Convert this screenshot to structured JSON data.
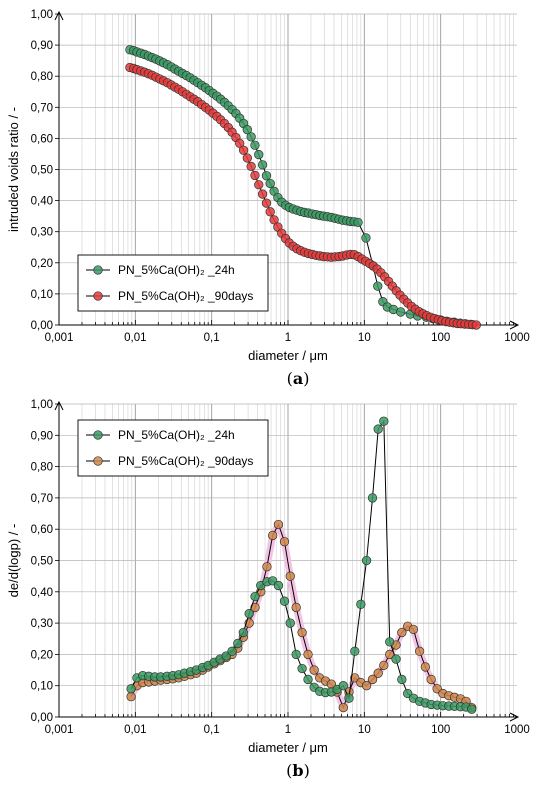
{
  "chart_data": [
    {
      "type": "scatter",
      "panel": "a",
      "caption_prefix": "(",
      "caption_letter": "a",
      "caption_suffix": ")",
      "xlabel": "diameter / μm",
      "ylabel": "intruded voids ratio / -",
      "xscale": "log",
      "xlim": [
        0.001,
        1000
      ],
      "ylim": [
        0,
        1.0
      ],
      "xticks": [
        "0,001",
        "0,01",
        "0,1",
        "1",
        "10",
        "100",
        "1000"
      ],
      "yticks": [
        "0,00",
        "0,10",
        "0,20",
        "0,30",
        "0,40",
        "0,50",
        "0,60",
        "0,70",
        "0,80",
        "0,90",
        "1,00"
      ],
      "grid": true,
      "legend_position": "bottom-left",
      "series": [
        {
          "name": "PN_5%Ca(OH)₂ _24h",
          "color": "#3a9a63",
          "x": [
            0.0085,
            0.0095,
            0.0105,
            0.0118,
            0.0132,
            0.0148,
            0.0166,
            0.0186,
            0.0209,
            0.0234,
            0.0263,
            0.0295,
            0.033,
            0.037,
            0.0415,
            0.0466,
            0.0523,
            0.0586,
            0.0658,
            0.0738,
            0.0828,
            0.0929,
            0.104,
            0.117,
            0.131,
            0.147,
            0.165,
            0.185,
            0.208,
            0.233,
            0.262,
            0.293,
            0.329,
            0.369,
            0.414,
            0.465,
            0.522,
            0.585,
            0.657,
            0.737,
            0.827,
            0.93,
            1.04,
            1.17,
            1.31,
            1.47,
            1.65,
            1.85,
            2.08,
            2.33,
            2.62,
            2.93,
            3.29,
            3.69,
            4.14,
            4.65,
            5.22,
            5.86,
            6.57,
            7.37,
            8.27,
            10.5,
            13.0,
            15.0,
            17.5,
            20,
            24,
            30,
            40,
            50,
            65,
            80,
            100,
            120,
            150,
            180,
            210,
            250
          ],
          "y": [
            0.885,
            0.882,
            0.878,
            0.874,
            0.87,
            0.865,
            0.86,
            0.855,
            0.849,
            0.843,
            0.837,
            0.83,
            0.823,
            0.816,
            0.809,
            0.802,
            0.795,
            0.787,
            0.779,
            0.771,
            0.763,
            0.754,
            0.745,
            0.736,
            0.726,
            0.716,
            0.705,
            0.693,
            0.68,
            0.665,
            0.648,
            0.628,
            0.605,
            0.578,
            0.548,
            0.515,
            0.48,
            0.455,
            0.43,
            0.41,
            0.395,
            0.385,
            0.378,
            0.373,
            0.369,
            0.365,
            0.362,
            0.36,
            0.357,
            0.355,
            0.352,
            0.35,
            0.348,
            0.346,
            0.343,
            0.34,
            0.337,
            0.335,
            0.333,
            0.332,
            0.33,
            0.28,
            0.19,
            0.125,
            0.075,
            0.058,
            0.05,
            0.042,
            0.035,
            0.029,
            0.025,
            0.02,
            0.016,
            0.012,
            0.009,
            0.006,
            0.004,
            0.002
          ]
        },
        {
          "name": "PN_5%Ca(OH)₂ _90days",
          "color": "#e53a3a",
          "x": [
            0.0085,
            0.0095,
            0.0105,
            0.0118,
            0.0132,
            0.0148,
            0.0166,
            0.0186,
            0.0209,
            0.0234,
            0.0263,
            0.0295,
            0.033,
            0.037,
            0.0415,
            0.0466,
            0.0523,
            0.0586,
            0.0658,
            0.0738,
            0.0828,
            0.0929,
            0.104,
            0.117,
            0.131,
            0.147,
            0.165,
            0.185,
            0.208,
            0.233,
            0.262,
            0.293,
            0.329,
            0.369,
            0.414,
            0.465,
            0.522,
            0.585,
            0.657,
            0.737,
            0.827,
            0.93,
            1.04,
            1.17,
            1.31,
            1.47,
            1.65,
            1.85,
            2.08,
            2.33,
            2.62,
            2.93,
            3.29,
            3.69,
            4.14,
            4.65,
            5.22,
            5.86,
            6.57,
            7.37,
            8.27,
            9.3,
            10.4,
            11.7,
            13.1,
            14.7,
            16.5,
            18.5,
            20.8,
            23.3,
            26.2,
            29.3,
            32.9,
            36.9,
            41.4,
            46.5,
            52.2,
            58.6,
            65.7,
            73.7,
            82.7,
            93,
            104,
            117,
            131,
            147,
            165,
            185,
            208,
            233,
            262,
            293
          ],
          "y": [
            0.828,
            0.825,
            0.821,
            0.817,
            0.813,
            0.808,
            0.803,
            0.797,
            0.791,
            0.785,
            0.779,
            0.772,
            0.765,
            0.758,
            0.75,
            0.742,
            0.734,
            0.726,
            0.718,
            0.709,
            0.7,
            0.691,
            0.681,
            0.671,
            0.66,
            0.648,
            0.635,
            0.62,
            0.603,
            0.584,
            0.562,
            0.537,
            0.51,
            0.481,
            0.451,
            0.421,
            0.392,
            0.364,
            0.338,
            0.315,
            0.295,
            0.278,
            0.264,
            0.253,
            0.245,
            0.239,
            0.234,
            0.23,
            0.227,
            0.224,
            0.222,
            0.22,
            0.219,
            0.218,
            0.219,
            0.22,
            0.222,
            0.225,
            0.227,
            0.226,
            0.22,
            0.212,
            0.205,
            0.198,
            0.19,
            0.18,
            0.168,
            0.155,
            0.14,
            0.125,
            0.11,
            0.096,
            0.083,
            0.071,
            0.06,
            0.051,
            0.043,
            0.036,
            0.03,
            0.025,
            0.021,
            0.017,
            0.014,
            0.011,
            0.009,
            0.007,
            0.005,
            0.004,
            0.003,
            0.002,
            0.001,
            0.0
          ]
        }
      ]
    },
    {
      "type": "line",
      "panel": "b",
      "caption_prefix": "(",
      "caption_letter": "b",
      "caption_suffix": ")",
      "xlabel": "diameter / μm",
      "ylabel": "de/d(logp)  / -",
      "xscale": "log",
      "xlim": [
        0.001,
        1000
      ],
      "ylim": [
        0,
        1.0
      ],
      "xticks": [
        "0,001",
        "0,01",
        "0,1",
        "1",
        "10",
        "100",
        "1000"
      ],
      "yticks": [
        "0,00",
        "0,10",
        "0,20",
        "0,30",
        "0,40",
        "0,50",
        "0,60",
        "0,70",
        "0,80",
        "0,90",
        "1,00"
      ],
      "grid": true,
      "legend_position": "top-left",
      "series": [
        {
          "name": "PN_5%Ca(OH)₂ _24h",
          "color": "#3a9a63",
          "x": [
            0.0088,
            0.0105,
            0.0125,
            0.015,
            0.018,
            0.0215,
            0.026,
            0.031,
            0.037,
            0.044,
            0.053,
            0.063,
            0.076,
            0.09,
            0.108,
            0.129,
            0.155,
            0.185,
            0.22,
            0.26,
            0.31,
            0.37,
            0.44,
            0.53,
            0.63,
            0.75,
            0.9,
            1.07,
            1.28,
            1.53,
            1.83,
            2.2,
            2.6,
            3.1,
            3.7,
            4.4,
            5.3,
            6.3,
            7.5,
            9,
            10.7,
            12.8,
            15.2,
            18,
            21.5,
            26,
            31,
            37,
            44,
            53,
            63,
            75,
            90,
            107,
            128,
            152,
            182,
            215,
            255
          ],
          "y": [
            0.09,
            0.125,
            0.132,
            0.13,
            0.128,
            0.128,
            0.13,
            0.132,
            0.135,
            0.14,
            0.145,
            0.15,
            0.158,
            0.165,
            0.175,
            0.185,
            0.195,
            0.21,
            0.235,
            0.27,
            0.33,
            0.385,
            0.42,
            0.432,
            0.435,
            0.42,
            0.37,
            0.3,
            0.2,
            0.155,
            0.12,
            0.095,
            0.082,
            0.078,
            0.08,
            0.088,
            0.1,
            0.06,
            0.21,
            0.36,
            0.5,
            0.7,
            0.92,
            0.945,
            0.24,
            0.185,
            0.12,
            0.075,
            0.06,
            0.05,
            0.045,
            0.04,
            0.038,
            0.036,
            0.035,
            0.034,
            0.033,
            0.032,
            0.025
          ]
        },
        {
          "name": "PN_5%Ca(OH)₂ _90days",
          "color": "#d08a4a",
          "x": [
            0.0088,
            0.0105,
            0.0125,
            0.015,
            0.018,
            0.0215,
            0.026,
            0.031,
            0.037,
            0.044,
            0.053,
            0.063,
            0.076,
            0.09,
            0.108,
            0.129,
            0.155,
            0.185,
            0.22,
            0.26,
            0.31,
            0.37,
            0.44,
            0.53,
            0.63,
            0.75,
            0.9,
            1.07,
            1.28,
            1.53,
            1.83,
            2.2,
            2.6,
            3.1,
            3.7,
            4.4,
            5.3,
            6.3,
            7.5,
            9,
            10.7,
            12.8,
            15.2,
            18,
            21.5,
            26,
            31,
            37,
            44,
            53,
            63,
            75,
            90,
            107,
            128,
            152,
            182,
            215,
            255
          ],
          "y": [
            0.065,
            0.1,
            0.11,
            0.112,
            0.115,
            0.118,
            0.12,
            0.122,
            0.125,
            0.13,
            0.135,
            0.14,
            0.15,
            0.16,
            0.17,
            0.18,
            0.19,
            0.2,
            0.22,
            0.255,
            0.3,
            0.35,
            0.4,
            0.48,
            0.58,
            0.615,
            0.56,
            0.45,
            0.35,
            0.27,
            0.2,
            0.15,
            0.125,
            0.115,
            0.105,
            0.08,
            0.03,
            0.08,
            0.125,
            0.11,
            0.1,
            0.12,
            0.14,
            0.165,
            0.2,
            0.23,
            0.27,
            0.29,
            0.28,
            0.21,
            0.16,
            0.12,
            0.09,
            0.075,
            0.068,
            0.063,
            0.058,
            0.05,
            0.03
          ]
        }
      ]
    }
  ]
}
